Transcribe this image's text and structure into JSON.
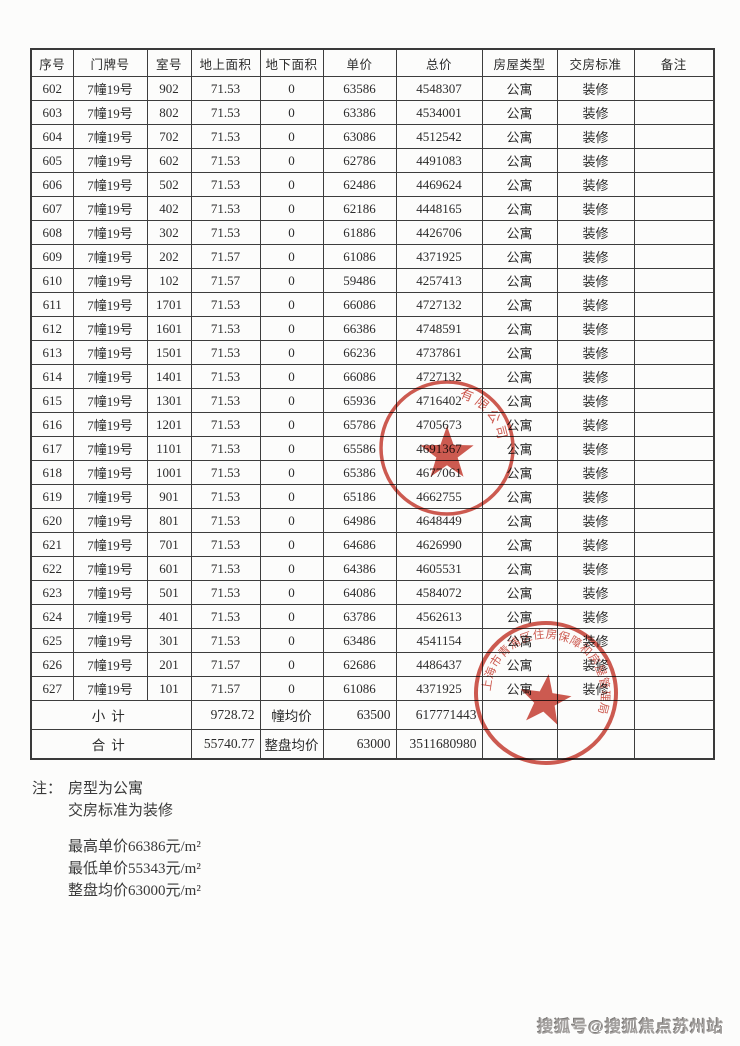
{
  "table": {
    "headers": [
      "序号",
      "门牌号",
      "室号",
      "地上面积",
      "地下面积",
      "单价",
      "总价",
      "房屋类型",
      "交房标准",
      "备注"
    ],
    "rows": [
      [
        "602",
        "7幢19号",
        "902",
        "71.53",
        "0",
        "63586",
        "4548307",
        "公寓",
        "装修",
        ""
      ],
      [
        "603",
        "7幢19号",
        "802",
        "71.53",
        "0",
        "63386",
        "4534001",
        "公寓",
        "装修",
        ""
      ],
      [
        "604",
        "7幢19号",
        "702",
        "71.53",
        "0",
        "63086",
        "4512542",
        "公寓",
        "装修",
        ""
      ],
      [
        "605",
        "7幢19号",
        "602",
        "71.53",
        "0",
        "62786",
        "4491083",
        "公寓",
        "装修",
        ""
      ],
      [
        "606",
        "7幢19号",
        "502",
        "71.53",
        "0",
        "62486",
        "4469624",
        "公寓",
        "装修",
        ""
      ],
      [
        "607",
        "7幢19号",
        "402",
        "71.53",
        "0",
        "62186",
        "4448165",
        "公寓",
        "装修",
        ""
      ],
      [
        "608",
        "7幢19号",
        "302",
        "71.53",
        "0",
        "61886",
        "4426706",
        "公寓",
        "装修",
        ""
      ],
      [
        "609",
        "7幢19号",
        "202",
        "71.57",
        "0",
        "61086",
        "4371925",
        "公寓",
        "装修",
        ""
      ],
      [
        "610",
        "7幢19号",
        "102",
        "71.57",
        "0",
        "59486",
        "4257413",
        "公寓",
        "装修",
        ""
      ],
      [
        "611",
        "7幢19号",
        "1701",
        "71.53",
        "0",
        "66086",
        "4727132",
        "公寓",
        "装修",
        ""
      ],
      [
        "612",
        "7幢19号",
        "1601",
        "71.53",
        "0",
        "66386",
        "4748591",
        "公寓",
        "装修",
        ""
      ],
      [
        "613",
        "7幢19号",
        "1501",
        "71.53",
        "0",
        "66236",
        "4737861",
        "公寓",
        "装修",
        ""
      ],
      [
        "614",
        "7幢19号",
        "1401",
        "71.53",
        "0",
        "66086",
        "4727132",
        "公寓",
        "装修",
        ""
      ],
      [
        "615",
        "7幢19号",
        "1301",
        "71.53",
        "0",
        "65936",
        "4716402",
        "公寓",
        "装修",
        ""
      ],
      [
        "616",
        "7幢19号",
        "1201",
        "71.53",
        "0",
        "65786",
        "4705673",
        "公寓",
        "装修",
        ""
      ],
      [
        "617",
        "7幢19号",
        "1101",
        "71.53",
        "0",
        "65586",
        "4691367",
        "公寓",
        "装修",
        ""
      ],
      [
        "618",
        "7幢19号",
        "1001",
        "71.53",
        "0",
        "65386",
        "4677061",
        "公寓",
        "装修",
        ""
      ],
      [
        "619",
        "7幢19号",
        "901",
        "71.53",
        "0",
        "65186",
        "4662755",
        "公寓",
        "装修",
        ""
      ],
      [
        "620",
        "7幢19号",
        "801",
        "71.53",
        "0",
        "64986",
        "4648449",
        "公寓",
        "装修",
        ""
      ],
      [
        "621",
        "7幢19号",
        "701",
        "71.53",
        "0",
        "64686",
        "4626990",
        "公寓",
        "装修",
        ""
      ],
      [
        "622",
        "7幢19号",
        "601",
        "71.53",
        "0",
        "64386",
        "4605531",
        "公寓",
        "装修",
        ""
      ],
      [
        "623",
        "7幢19号",
        "501",
        "71.53",
        "0",
        "64086",
        "4584072",
        "公寓",
        "装修",
        ""
      ],
      [
        "624",
        "7幢19号",
        "401",
        "71.53",
        "0",
        "63786",
        "4562613",
        "公寓",
        "装修",
        ""
      ],
      [
        "625",
        "7幢19号",
        "301",
        "71.53",
        "0",
        "63486",
        "4541154",
        "公寓",
        "装修",
        ""
      ],
      [
        "626",
        "7幢19号",
        "201",
        "71.57",
        "0",
        "62686",
        "4486437",
        "公寓",
        "装修",
        ""
      ],
      [
        "627",
        "7幢19号",
        "101",
        "71.57",
        "0",
        "61086",
        "4371925",
        "公寓",
        "装修",
        ""
      ]
    ],
    "subtotal_row": {
      "label": "小计",
      "area": "9728.72",
      "avg_label": "幢均价",
      "avg_price": "63500",
      "total": "617771443"
    },
    "total_row": {
      "label": "合计",
      "area": "55740.77",
      "avg_label": "整盘均价",
      "avg_price": "63000",
      "total": "3511680980"
    }
  },
  "notes": {
    "label": "注：",
    "lines": [
      "房型为公寓",
      "交房标准为装修"
    ],
    "price_lines": [
      "最高单价66386元/m²",
      "最低单价55343元/m²",
      "整盘均价63000元/m²"
    ]
  },
  "stamps": {
    "company_seal": {
      "arc_text": "有限公司",
      "color": "#c5362a"
    },
    "government_seal": {
      "arc_text": "上海市青浦区住房保障和房屋管理局",
      "color": "#c5362a"
    }
  },
  "watermark": {
    "text": "搜狐号@搜狐焦点苏州站"
  }
}
